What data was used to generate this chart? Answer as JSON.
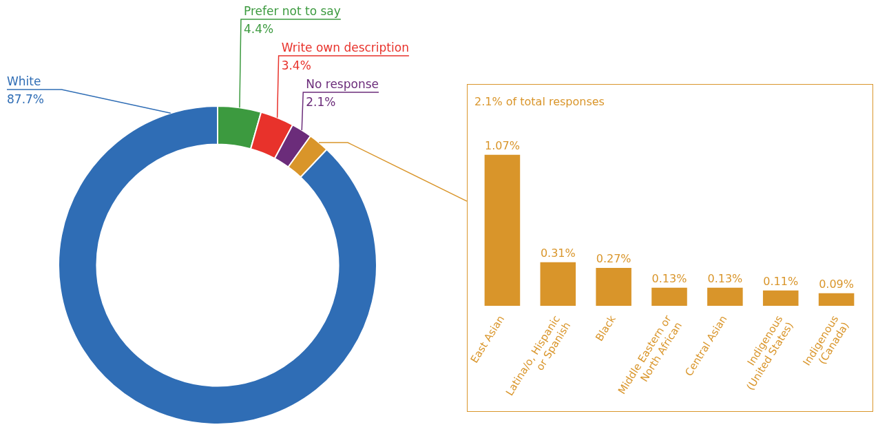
{
  "chart_data": [
    {
      "type": "donut",
      "categories": [
        "Prefer not to say",
        "Write own description",
        "No response",
        null,
        "White"
      ],
      "values": [
        4.4,
        3.4,
        2.1,
        2.1,
        87.7
      ],
      "colors": [
        "#3c9a3f",
        "#e8322b",
        "#6b2c7a",
        "#d9952a",
        "#2f6db5"
      ],
      "value_labels": [
        "4.4%",
        "3.4%",
        "2.1%",
        null,
        "87.7%"
      ]
    },
    {
      "type": "bar",
      "title": "2.1% of total responses",
      "categories": [
        "East Asian",
        "Latina/o, Hispanic or Spanish",
        "Black",
        "Middle Eastern or North African",
        "Central Asian",
        "Indigenous (United States)",
        "Indigenous (Canada)"
      ],
      "values": [
        1.07,
        0.31,
        0.27,
        0.13,
        0.13,
        0.11,
        0.09
      ],
      "color": "#d9952a",
      "value_labels": [
        "1.07%",
        "0.31%",
        "0.27%",
        "0.13%",
        "0.13%",
        "0.11%",
        "0.09%"
      ]
    }
  ]
}
